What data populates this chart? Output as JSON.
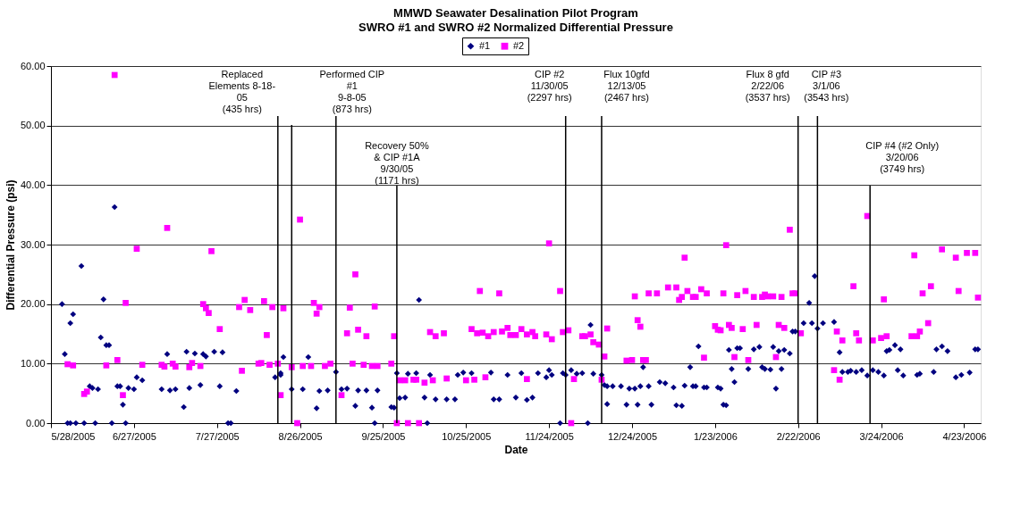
{
  "chart_data": {
    "type": "scatter",
    "title": "MMWD Seawater Desalination Pilot Program",
    "subtitle": "SWRO #1 and SWRO #2 Normalized Differential Pressure",
    "xlabel": "Date",
    "ylabel": "Differential Pressure (psi)",
    "xlim": [
      "2005-05-28",
      "2006-04-29"
    ],
    "ylim": [
      0,
      60
    ],
    "xticks": [
      {
        "value": "2005-05-28",
        "label": "5/28/2005"
      },
      {
        "value": "2005-06-27",
        "label": "6/27/2005"
      },
      {
        "value": "2005-07-27",
        "label": "7/27/2005"
      },
      {
        "value": "2005-08-26",
        "label": "8/26/2005"
      },
      {
        "value": "2005-09-25",
        "label": "9/25/2005"
      },
      {
        "value": "2005-10-25",
        "label": "10/25/2005"
      },
      {
        "value": "2005-11-24",
        "label": "11/24/2005"
      },
      {
        "value": "2005-12-24",
        "label": "12/24/2005"
      },
      {
        "value": "2006-01-23",
        "label": "1/23/2006"
      },
      {
        "value": "2006-02-22",
        "label": "2/22/2006"
      },
      {
        "value": "2006-03-24",
        "label": "3/24/2006"
      },
      {
        "value": "2006-04-23",
        "label": "4/23/2006"
      }
    ],
    "yticks": [
      {
        "value": 0,
        "label": "0.00"
      },
      {
        "value": 10,
        "label": "10.00"
      },
      {
        "value": 20,
        "label": "20.00"
      },
      {
        "value": 30,
        "label": "30.00"
      },
      {
        "value": 40,
        "label": "40.00"
      },
      {
        "value": 50,
        "label": "50.00"
      },
      {
        "value": 60,
        "label": "60.00"
      }
    ],
    "grid": "y",
    "legend": "top",
    "series": [
      {
        "name": "#1",
        "color": "#000080",
        "marker": "diamond",
        "x": [
          "2005-06-01",
          "2005-06-02",
          "2005-06-03",
          "2005-06-04",
          "2005-06-04",
          "2005-06-05",
          "2005-06-06",
          "2005-06-08",
          "2005-06-09",
          "2005-06-11",
          "2005-06-12",
          "2005-06-13",
          "2005-06-14",
          "2005-06-15",
          "2005-06-16",
          "2005-06-17",
          "2005-06-18",
          "2005-06-19",
          "2005-06-20",
          "2005-06-21",
          "2005-06-22",
          "2005-06-23",
          "2005-06-24",
          "2005-06-25",
          "2005-06-27",
          "2005-06-28",
          "2005-06-30",
          "2005-07-07",
          "2005-07-09",
          "2005-07-10",
          "2005-07-12",
          "2005-07-15",
          "2005-07-16",
          "2005-07-17",
          "2005-07-19",
          "2005-07-21",
          "2005-07-22",
          "2005-07-23",
          "2005-07-26",
          "2005-07-28",
          "2005-07-29",
          "2005-07-31",
          "2005-08-01",
          "2005-08-03",
          "2005-08-17",
          "2005-08-19",
          "2005-08-19",
          "2005-08-20",
          "2005-08-23",
          "2005-08-25",
          "2005-08-27",
          "2005-08-29",
          "2005-09-01",
          "2005-09-02",
          "2005-09-05",
          "2005-09-08",
          "2005-09-10",
          "2005-09-12",
          "2005-09-15",
          "2005-09-16",
          "2005-09-19",
          "2005-09-21",
          "2005-09-22",
          "2005-09-23",
          "2005-09-28",
          "2005-09-29",
          "2005-09-30",
          "2005-10-01",
          "2005-10-03",
          "2005-10-04",
          "2005-10-07",
          "2005-10-08",
          "2005-10-10",
          "2005-10-11",
          "2005-10-12",
          "2005-10-14",
          "2005-10-18",
          "2005-10-21",
          "2005-10-22",
          "2005-10-24",
          "2005-10-27",
          "2005-11-03",
          "2005-11-04",
          "2005-11-06",
          "2005-11-09",
          "2005-11-12",
          "2005-11-14",
          "2005-11-16",
          "2005-11-18",
          "2005-11-20",
          "2005-11-23",
          "2005-11-24",
          "2005-11-25",
          "2005-11-28",
          "2005-11-29",
          "2005-11-30",
          "2005-12-02",
          "2005-12-04",
          "2005-12-06",
          "2005-12-08",
          "2005-12-09",
          "2005-12-10",
          "2005-12-13",
          "2005-12-14",
          "2005-12-15",
          "2005-12-15",
          "2005-12-17",
          "2005-12-20",
          "2005-12-22",
          "2005-12-23",
          "2005-12-25",
          "2005-12-26",
          "2005-12-27",
          "2005-12-28",
          "2005-12-30",
          "2005-12-31",
          "2006-01-03",
          "2006-01-05",
          "2006-01-08",
          "2006-01-09",
          "2006-01-11",
          "2006-01-12",
          "2006-01-14",
          "2006-01-15",
          "2006-01-16",
          "2006-01-17",
          "2006-01-19",
          "2006-01-20",
          "2006-01-24",
          "2006-01-25",
          "2006-01-26",
          "2006-01-27",
          "2006-01-28",
          "2006-01-29",
          "2006-01-30",
          "2006-01-31",
          "2006-02-01",
          "2006-02-04",
          "2006-02-06",
          "2006-02-08",
          "2006-02-09",
          "2006-02-10",
          "2006-02-12",
          "2006-02-13",
          "2006-02-14",
          "2006-02-15",
          "2006-02-16",
          "2006-02-17",
          "2006-02-19",
          "2006-02-20",
          "2006-02-21",
          "2006-02-24",
          "2006-02-26",
          "2006-02-27",
          "2006-02-28",
          "2006-03-01",
          "2006-03-03",
          "2006-03-07",
          "2006-03-09",
          "2006-03-10",
          "2006-03-12",
          "2006-03-13",
          "2006-03-15",
          "2006-03-17",
          "2006-03-19",
          "2006-03-21",
          "2006-03-23",
          "2006-03-25",
          "2006-03-26",
          "2006-03-27",
          "2006-03-29",
          "2006-03-30",
          "2006-03-31",
          "2006-04-01",
          "2006-04-06",
          "2006-04-07",
          "2006-04-12",
          "2006-04-13",
          "2006-04-15",
          "2006-04-17",
          "2006-04-20",
          "2006-04-22",
          "2006-04-25",
          "2006-04-27",
          "2006-04-28"
        ],
        "values": [
          20.0,
          11.6,
          0,
          0,
          16.8,
          18.3,
          0,
          26.4,
          0,
          6.2,
          5.9,
          0,
          5.7,
          14.4,
          20.8,
          13.1,
          13.1,
          0,
          36.3,
          6.2,
          6.2,
          3.1,
          0,
          5.9,
          5.7,
          7.7,
          7.2,
          5.7,
          11.6,
          5.5,
          5.7,
          2.7,
          12.0,
          5.9,
          11.7,
          6.4,
          11.6,
          11.2,
          12.0,
          6.2,
          11.9,
          0,
          0,
          5.4,
          7.7,
          8.4,
          8.1,
          11.1,
          5.7,
          0,
          5.7,
          11.1,
          2.5,
          5.4,
          5.5,
          8.6,
          5.7,
          5.8,
          2.9,
          5.5,
          5.5,
          2.6,
          0,
          5.5,
          2.7,
          2.6,
          8.4,
          4.2,
          4.3,
          8.3,
          8.4,
          20.7,
          4.3,
          0,
          8.1,
          4.0,
          4.0,
          4.0,
          8.1,
          8.5,
          8.4,
          8.5,
          4.0,
          4.0,
          8.1,
          4.3,
          8.4,
          3.9,
          4.3,
          8.4,
          7.7,
          8.9,
          8.1,
          0,
          8.4,
          8.1,
          8.9,
          8.3,
          8.4,
          0,
          16.5,
          8.3,
          8.1,
          6.4,
          6.2,
          3.2,
          6.2,
          6.2,
          3.1,
          5.8,
          5.8,
          3.1,
          6.2,
          9.4,
          6.2,
          3.1,
          6.9,
          6.7,
          6.0,
          3.0,
          2.9,
          6.3,
          9.4,
          6.2,
          6.2,
          12.9,
          6.0,
          6.0,
          6.0,
          5.8,
          3.1,
          3.0,
          12.3,
          9.1,
          6.9,
          12.6,
          12.6,
          9.1,
          12.4,
          12.8,
          9.4,
          9.1,
          9.0,
          12.8,
          5.8,
          12.1,
          9.1,
          12.3,
          11.7,
          15.4,
          15.4,
          16.8,
          20.2,
          16.8,
          24.7,
          15.9,
          16.8,
          17.0,
          11.9,
          8.6,
          8.6,
          8.8,
          8.6,
          8.9,
          8.0,
          8.9,
          8.6,
          8.0,
          12.1,
          12.3,
          13.1,
          8.9,
          12.4,
          8.0,
          8.1,
          8.3,
          8.6,
          12.4,
          12.9,
          12.1,
          7.7,
          8.1,
          8.5,
          12.4,
          12.4
        ]
      },
      {
        "name": "#2",
        "color": "#ff00ff",
        "marker": "square",
        "x": [
          "2005-06-03",
          "2005-06-05",
          "2005-06-09",
          "2005-06-10",
          "2005-06-17",
          "2005-06-20",
          "2005-06-21",
          "2005-06-23",
          "2005-06-24",
          "2005-06-28",
          "2005-06-30",
          "2005-07-07",
          "2005-07-08",
          "2005-07-09",
          "2005-07-11",
          "2005-07-12",
          "2005-07-17",
          "2005-07-18",
          "2005-07-21",
          "2005-07-22",
          "2005-07-23",
          "2005-07-24",
          "2005-07-25",
          "2005-07-28",
          "2005-08-04",
          "2005-08-05",
          "2005-08-06",
          "2005-08-08",
          "2005-08-11",
          "2005-08-12",
          "2005-08-13",
          "2005-08-14",
          "2005-08-15",
          "2005-08-16",
          "2005-08-18",
          "2005-08-19",
          "2005-08-20",
          "2005-08-23",
          "2005-08-25",
          "2005-08-26",
          "2005-08-27",
          "2005-08-30",
          "2005-08-31",
          "2005-09-01",
          "2005-09-02",
          "2005-09-04",
          "2005-09-06",
          "2005-09-10",
          "2005-09-12",
          "2005-09-13",
          "2005-09-14",
          "2005-09-15",
          "2005-09-16",
          "2005-09-18",
          "2005-09-19",
          "2005-09-21",
          "2005-09-22",
          "2005-09-23",
          "2005-09-28",
          "2005-09-29",
          "2005-09-30",
          "2005-10-01",
          "2005-10-03",
          "2005-10-04",
          "2005-10-06",
          "2005-10-07",
          "2005-10-08",
          "2005-10-10",
          "2005-10-12",
          "2005-10-13",
          "2005-10-14",
          "2005-10-17",
          "2005-10-18",
          "2005-10-25",
          "2005-10-27",
          "2005-10-28",
          "2005-10-29",
          "2005-10-30",
          "2005-10-31",
          "2005-11-01",
          "2005-11-02",
          "2005-11-04",
          "2005-11-06",
          "2005-11-07",
          "2005-11-09",
          "2005-11-10",
          "2005-11-12",
          "2005-11-14",
          "2005-11-16",
          "2005-11-16",
          "2005-11-18",
          "2005-11-19",
          "2005-11-23",
          "2005-11-24",
          "2005-11-25",
          "2005-11-28",
          "2005-11-29",
          "2005-12-01",
          "2005-12-02",
          "2005-12-03",
          "2005-12-06",
          "2005-12-07",
          "2005-12-09",
          "2005-12-10",
          "2005-12-12",
          "2005-12-13",
          "2005-12-14",
          "2005-12-15",
          "2005-12-22",
          "2005-12-24",
          "2005-12-25",
          "2005-12-26",
          "2005-12-27",
          "2005-12-28",
          "2005-12-29",
          "2005-12-30",
          "2006-01-02",
          "2006-01-06",
          "2006-01-09",
          "2006-01-10",
          "2006-01-11",
          "2006-01-12",
          "2006-01-13",
          "2006-01-15",
          "2006-01-16",
          "2006-01-18",
          "2006-01-19",
          "2006-01-20",
          "2006-01-23",
          "2006-01-24",
          "2006-01-25",
          "2006-01-26",
          "2006-01-27",
          "2006-01-28",
          "2006-01-29",
          "2006-01-30",
          "2006-01-31",
          "2006-02-02",
          "2006-02-03",
          "2006-02-04",
          "2006-02-06",
          "2006-02-07",
          "2006-02-09",
          "2006-02-10",
          "2006-02-11",
          "2006-02-13",
          "2006-02-14",
          "2006-02-15",
          "2006-02-16",
          "2006-02-17",
          "2006-02-19",
          "2006-02-20",
          "2006-02-21",
          "2006-02-23",
          "2006-03-07",
          "2006-03-08",
          "2006-03-09",
          "2006-03-10",
          "2006-03-14",
          "2006-03-15",
          "2006-03-16",
          "2006-03-19",
          "2006-03-21",
          "2006-03-24",
          "2006-03-25",
          "2006-03-26",
          "2006-04-04",
          "2006-04-05",
          "2006-04-06",
          "2006-04-07",
          "2006-04-08",
          "2006-04-10",
          "2006-04-11",
          "2006-04-15",
          "2006-04-20",
          "2006-04-21",
          "2006-04-24",
          "2006-04-27",
          "2006-04-28"
        ],
        "values": [
          9.9,
          9.7,
          4.9,
          5.3,
          9.7,
          58.5,
          10.6,
          4.7,
          20.2,
          29.3,
          9.8,
          9.8,
          9.5,
          32.8,
          10.0,
          9.5,
          9.4,
          10.1,
          9.6,
          20.0,
          19.3,
          18.5,
          28.9,
          15.8,
          19.5,
          8.8,
          20.7,
          19.0,
          10.0,
          10.1,
          20.5,
          14.8,
          9.8,
          19.5,
          10.0,
          4.7,
          19.3,
          9.4,
          0,
          34.2,
          9.6,
          9.6,
          20.2,
          18.4,
          19.5,
          9.6,
          10.0,
          4.7,
          15.1,
          19.4,
          10.0,
          25.0,
          15.7,
          9.8,
          14.6,
          9.6,
          19.6,
          9.6,
          10.0,
          14.6,
          0,
          7.2,
          7.2,
          0,
          7.3,
          7.3,
          0,
          6.8,
          15.3,
          7.2,
          14.6,
          15.1,
          7.5,
          7.2,
          15.8,
          7.3,
          15.1,
          22.2,
          15.2,
          7.7,
          14.6,
          15.3,
          21.8,
          15.4,
          16.0,
          14.8,
          14.8,
          15.8,
          14.9,
          7.4,
          15.3,
          14.6,
          14.9,
          30.2,
          14.1,
          22.2,
          15.3,
          15.6,
          0,
          7.4,
          14.6,
          14.6,
          14.9,
          13.6,
          13.2,
          7.3,
          11.2,
          15.9,
          10.5,
          10.6,
          21.3,
          17.3,
          16.2,
          10.6,
          10.6,
          21.8,
          21.8,
          22.8,
          22.8,
          20.7,
          21.2,
          27.8,
          22.2,
          21.2,
          21.2,
          22.5,
          11.0,
          21.8,
          16.3,
          15.7,
          15.6,
          21.8,
          29.9,
          16.5,
          16.0,
          11.1,
          21.5,
          15.8,
          22.2,
          10.6,
          21.2,
          16.5,
          21.2,
          21.6,
          21.3,
          21.3,
          11.1,
          16.5,
          21.2,
          16.0,
          32.5,
          21.8,
          21.8,
          15.1,
          8.9,
          15.4,
          7.3,
          13.9,
          23.0,
          15.1,
          13.9,
          34.8,
          13.9,
          14.3,
          20.8,
          14.6,
          14.6,
          28.2,
          14.6,
          15.4,
          21.8,
          16.8,
          23.0,
          29.2,
          27.8,
          22.2,
          28.6,
          28.6,
          21.1
        ]
      }
    ],
    "ref_lines": [
      {
        "axis": "x",
        "value": "2005-08-18",
        "label": "Replaced\nElements 8-18-\n05\n(435 hrs)"
      },
      {
        "axis": "x",
        "value": "2005-08-23"
      },
      {
        "axis": "x",
        "value": "2005-09-08",
        "label": "Performed CIP\n#1\n9-8-05\n(873 hrs)"
      },
      {
        "axis": "x",
        "value": "2005-09-30",
        "label": "Recovery 50%\n& CIP #1A\n9/30/05\n(1171 hrs)"
      },
      {
        "axis": "x",
        "value": "2005-11-30",
        "label": "CIP #2\n11/30/05\n(2297 hrs)"
      },
      {
        "axis": "x",
        "value": "2005-12-13",
        "label": "Flux 10gfd\n12/13/05\n(2467 hrs)"
      },
      {
        "axis": "x",
        "value": "2006-02-22",
        "label": "Flux 8 gfd\n2/22/06\n(3537 hrs)"
      },
      {
        "axis": "x",
        "value": "2006-03-01",
        "label": "CIP #3\n3/1/06\n(3543 hrs)"
      },
      {
        "axis": "x",
        "value": "2006-03-20",
        "label": "CIP #4 (#2 Only)\n3/20/06\n(3749 hrs)"
      }
    ]
  }
}
